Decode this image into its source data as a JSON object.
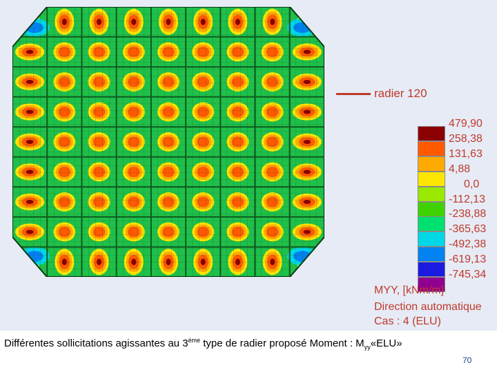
{
  "legend": {
    "line_label": "radier 120",
    "line_color": "#c0392b"
  },
  "scale": [
    {
      "value": "479,90",
      "color": "#8b0000"
    },
    {
      "value": "258,38",
      "color": "#ff5a00"
    },
    {
      "value": "131,63",
      "color": "#ffaa00"
    },
    {
      "value": "4,88",
      "color": "#ffe600"
    },
    {
      "value": "0,0",
      "color": "#9be800"
    },
    {
      "value": "-112,13",
      "color": "#3ed300"
    },
    {
      "value": "-238,88",
      "color": "#00e070"
    },
    {
      "value": "-365,63",
      "color": "#00d8e8"
    },
    {
      "value": "-492,38",
      "color": "#0082f0"
    },
    {
      "value": "-619,13",
      "color": "#1a1ae0"
    },
    {
      "value": "-745,34",
      "color": "#900090"
    }
  ],
  "info": {
    "line1": "MYY, [kNm/m]",
    "line2": "Direction automatique",
    "line3": "Cas : 4 (ELU)"
  },
  "caption": {
    "part1": "Différentes sollicitations agissantes au 3",
    "sup": "éme",
    "part2": " type de radier proposé Moment : M",
    "sub": "yy",
    "part3": "«ELU»"
  },
  "page_number": "70"
}
